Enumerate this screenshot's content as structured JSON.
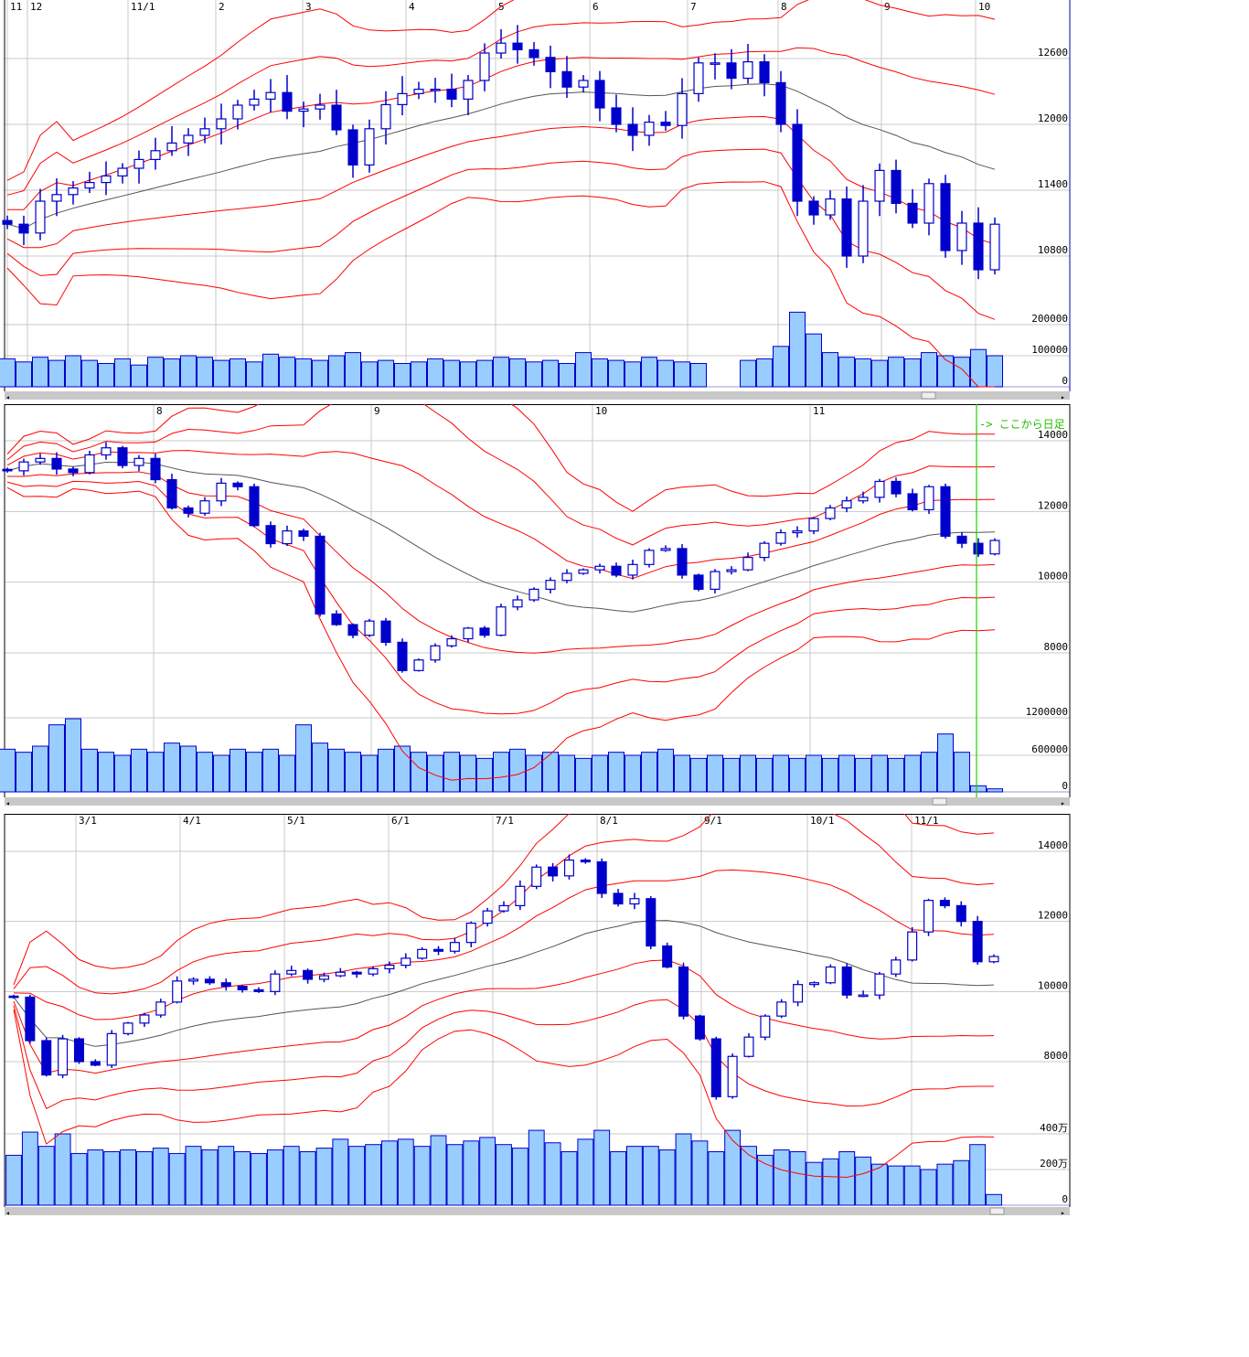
{
  "chart_data": [
    {
      "type": "candlestick",
      "indicators": [
        "moving average",
        "bollinger bands ±1σ ±2σ ±3σ"
      ],
      "x_labels": [
        "11",
        "12",
        "11/1",
        "2",
        "3",
        "4",
        "5",
        "6",
        "7",
        "8",
        "9",
        "10"
      ],
      "y_ticks": [
        12600,
        12000,
        11400,
        10800
      ],
      "y_tick_labels": [
        "12600",
        "12000",
        "11400",
        "10800"
      ],
      "volume_ticks": [
        "200000",
        "100000",
        "0"
      ],
      "ylim": [
        10258,
        13133
      ],
      "volume_lim": [
        0,
        260000
      ],
      "grid": true,
      "close": [
        11090,
        11010,
        11300,
        11360,
        11420,
        11470,
        11530,
        11600,
        11680,
        11760,
        11830,
        11900,
        11960,
        12050,
        12175,
        12230,
        12290,
        12120,
        12140,
        12175,
        11950,
        11630,
        11960,
        12180,
        12280,
        12320,
        12320,
        12230,
        12400,
        12650,
        12740,
        12680,
        12610,
        12480,
        12340,
        12400,
        12150,
        12000,
        11900,
        12020,
        11990,
        12280,
        12560,
        12560,
        12420,
        12570,
        12380,
        12000,
        11300,
        11175,
        11320,
        10800,
        11300,
        11580,
        11280,
        11100,
        11460,
        10850,
        11100,
        10675,
        11090
      ],
      "volume": [
        90000,
        80000,
        95000,
        85000,
        100000,
        85000,
        75000,
        90000,
        70000,
        95000,
        90000,
        100000,
        95000,
        85000,
        90000,
        80000,
        105000,
        95000,
        90000,
        85000,
        100000,
        110000,
        80000,
        85000,
        75000,
        80000,
        90000,
        85000,
        80000,
        85000,
        95000,
        90000,
        80000,
        85000,
        75000,
        110000,
        90000,
        85000,
        80000,
        95000,
        85000,
        80000,
        75000,
        0,
        0,
        85000,
        90000,
        130000,
        240000,
        170000,
        110000,
        95000,
        90000,
        85000,
        95000,
        90000,
        110000,
        100000,
        95000,
        120000,
        100000
      ]
    },
    {
      "type": "candlestick",
      "indicators": [
        "moving average",
        "bollinger bands ±1σ ±2σ ±3σ"
      ],
      "x_labels": [
        "8",
        "9",
        "10",
        "11"
      ],
      "y_ticks": [
        14000,
        12000,
        10000,
        8000
      ],
      "y_tick_labels": [
        "14000",
        "12000",
        "10000",
        "8000"
      ],
      "volume_ticks": [
        "1200000",
        "600000",
        "0"
      ],
      "ylim": [
        6500,
        15000
      ],
      "volume_lim": [
        0,
        1400000
      ],
      "grid": true,
      "annotation": "-> ここから日足",
      "close": [
        13150,
        13400,
        13500,
        13200,
        13100,
        13600,
        13800,
        13300,
        13500,
        12900,
        12100,
        11950,
        12300,
        12800,
        12700,
        11600,
        11090,
        11450,
        11300,
        9100,
        8800,
        8500,
        8900,
        8300,
        7500,
        7800,
        8200,
        8400,
        8700,
        8500,
        9300,
        9500,
        9800,
        10050,
        10250,
        10350,
        10450,
        10200,
        10500,
        10900,
        10950,
        10200,
        9800,
        10300,
        10350,
        10700,
        11100,
        11400,
        11450,
        11800,
        12100,
        12300,
        12400,
        12850,
        12500,
        12050,
        12700,
        11300,
        11100,
        10800,
        11180
      ],
      "volume": [
        700000,
        650000,
        750000,
        1100000,
        1200000,
        700000,
        650000,
        600000,
        700000,
        650000,
        800000,
        750000,
        650000,
        600000,
        700000,
        650000,
        700000,
        600000,
        1100000,
        800000,
        700000,
        650000,
        600000,
        700000,
        750000,
        650000,
        600000,
        650000,
        600000,
        550000,
        650000,
        700000,
        600000,
        650000,
        600000,
        550000,
        600000,
        650000,
        600000,
        650000,
        700000,
        600000,
        550000,
        600000,
        550000,
        600000,
        550000,
        600000,
        550000,
        600000,
        550000,
        600000,
        550000,
        600000,
        550000,
        600000,
        650000,
        950000,
        650000,
        100000,
        50000
      ]
    },
    {
      "type": "candlestick",
      "indicators": [
        "moving average",
        "bollinger bands ±1σ ±2σ ±3σ"
      ],
      "x_labels": [
        "3/1",
        "4/1",
        "5/1",
        "6/1",
        "7/1",
        "8/1",
        "9/1",
        "10/1",
        "11/1"
      ],
      "y_ticks": [
        14000,
        12000,
        10000,
        8000
      ],
      "y_tick_labels": [
        "14000",
        "12000",
        "10000",
        "8000"
      ],
      "volume_ticks": [
        "400万",
        "200万",
        "0"
      ],
      "volume_unit": "万",
      "ylim": [
        6000,
        15000
      ],
      "volume_lim": [
        0,
        450
      ],
      "grid": true,
      "close": [
        9840,
        8600,
        7620,
        8650,
        8000,
        7900,
        8800,
        9100,
        9330,
        9700,
        10300,
        10350,
        10250,
        10150,
        10050,
        10000,
        10500,
        10600,
        10350,
        10450,
        10550,
        10500,
        10650,
        10750,
        10950,
        11200,
        11150,
        11400,
        11950,
        12300,
        12450,
        13000,
        13550,
        13300,
        13750,
        13700,
        12800,
        12500,
        12650,
        11300,
        10700,
        9300,
        8650,
        7000,
        8150,
        8700,
        9300,
        9700,
        10200,
        10250,
        10700,
        9900,
        9900,
        10500,
        10900,
        11700,
        12600,
        12450,
        12000,
        10850,
        11000
      ],
      "volume": [
        280,
        410,
        330,
        400,
        290,
        310,
        300,
        310,
        300,
        320,
        290,
        330,
        310,
        330,
        300,
        290,
        310,
        330,
        300,
        320,
        370,
        330,
        340,
        360,
        370,
        330,
        390,
        340,
        360,
        380,
        340,
        320,
        420,
        350,
        300,
        370,
        420,
        300,
        330,
        330,
        310,
        400,
        360,
        300,
        420,
        330,
        280,
        310,
        300,
        240,
        260,
        300,
        270,
        230,
        220,
        220,
        200,
        230,
        250,
        340,
        60
      ]
    }
  ],
  "scrollbar": {
    "left_arrow": "◂",
    "right_arrow": "▸"
  }
}
